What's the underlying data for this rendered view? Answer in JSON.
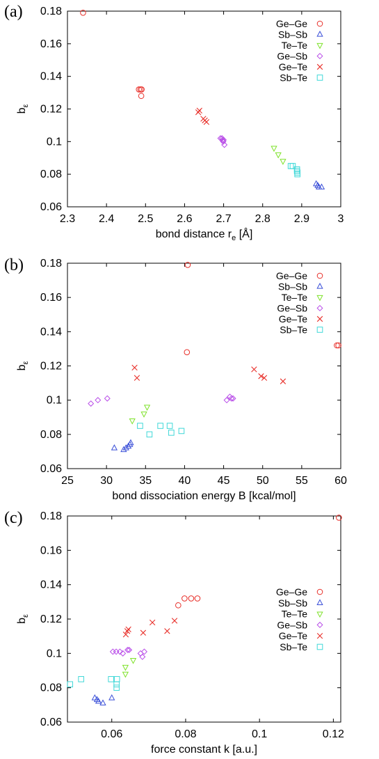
{
  "series_styles": [
    {
      "name": "Ge–Ge",
      "marker": "circle",
      "color": "#e8302a"
    },
    {
      "name": "Sb–Sb",
      "marker": "triangle-up",
      "color": "#3a4fd8"
    },
    {
      "name": "Te–Te",
      "marker": "triangle-down",
      "color": "#7ee22a"
    },
    {
      "name": "Ge–Sb",
      "marker": "diamond",
      "color": "#b84ce8"
    },
    {
      "name": "Ge–Te",
      "marker": "cross",
      "color": "#e8302a"
    },
    {
      "name": "Sb–Te",
      "marker": "square",
      "color": "#3fd8d8"
    }
  ],
  "chart_data": [
    {
      "panel_label": "(a)",
      "type": "scatter",
      "xlabel": "bond distance r",
      "xlabel_sub": "e",
      "xlabel_unit": " [Å]",
      "ylabel": "b",
      "ylabel_sub": "ε",
      "xlim": [
        2.3,
        3.0
      ],
      "ylim": [
        0.06,
        0.18
      ],
      "xticks": [
        "2.3",
        "2.4",
        "2.5",
        "2.6",
        "2.7",
        "2.8",
        "2.9",
        "3"
      ],
      "yticks": [
        "0.06",
        "0.08",
        "0.1",
        "0.12",
        "0.14",
        "0.16",
        "0.18"
      ],
      "legend_position": "top-right",
      "series": [
        {
          "name": "Ge–Ge",
          "points": [
            [
              2.34,
              0.179
            ],
            [
              2.483,
              0.132
            ],
            [
              2.487,
              0.132
            ],
            [
              2.49,
              0.132
            ],
            [
              2.489,
              0.128
            ]
          ]
        },
        {
          "name": "Sb–Sb",
          "points": [
            [
              2.937,
              0.074
            ],
            [
              2.941,
              0.073
            ],
            [
              2.944,
              0.072
            ],
            [
              2.951,
              0.072
            ]
          ]
        },
        {
          "name": "Te–Te",
          "points": [
            [
              2.829,
              0.096
            ],
            [
              2.84,
              0.092
            ],
            [
              2.852,
              0.088
            ]
          ]
        },
        {
          "name": "Ge–Sb",
          "points": [
            [
              2.692,
              0.102
            ],
            [
              2.697,
              0.101
            ],
            [
              2.7,
              0.101
            ],
            [
              2.702,
              0.098
            ],
            [
              2.699,
              0.1
            ],
            [
              2.696,
              0.102
            ]
          ]
        },
        {
          "name": "Ge–Te",
          "points": [
            [
              2.635,
              0.118
            ],
            [
              2.638,
              0.119
            ],
            [
              2.648,
              0.114
            ],
            [
              2.652,
              0.113
            ],
            [
              2.656,
              0.112
            ]
          ]
        },
        {
          "name": "Sb–Te",
          "points": [
            [
              2.872,
              0.085
            ],
            [
              2.877,
              0.085
            ],
            [
              2.888,
              0.083
            ],
            [
              2.888,
              0.082
            ],
            [
              2.889,
              0.081
            ],
            [
              2.889,
              0.08
            ]
          ]
        }
      ]
    },
    {
      "panel_label": "(b)",
      "type": "scatter",
      "xlabel": "bond dissociation energy B [kcal/mol]",
      "xlabel_sub": "",
      "xlabel_unit": "",
      "ylabel": "b",
      "ylabel_sub": "ε",
      "xlim": [
        25,
        60
      ],
      "ylim": [
        0.06,
        0.18
      ],
      "xticks": [
        "25",
        "30",
        "35",
        "40",
        "45",
        "50",
        "55",
        "60"
      ],
      "yticks": [
        "0.06",
        "0.08",
        "0.1",
        "0.12",
        "0.14",
        "0.16",
        "0.18"
      ],
      "legend_position": "top-right",
      "series": [
        {
          "name": "Ge–Ge",
          "points": [
            [
              40.4,
              0.179
            ],
            [
              40.3,
              0.128
            ],
            [
              59.5,
              0.132
            ],
            [
              59.7,
              0.132
            ]
          ]
        },
        {
          "name": "Sb–Sb",
          "points": [
            [
              31,
              0.072
            ],
            [
              32.2,
              0.071
            ],
            [
              32.5,
              0.072
            ],
            [
              32.8,
              0.073
            ],
            [
              33,
              0.074
            ],
            [
              33.1,
              0.075
            ]
          ]
        },
        {
          "name": "Te–Te",
          "points": [
            [
              33.3,
              0.088
            ],
            [
              34.8,
              0.092
            ],
            [
              35.2,
              0.096
            ]
          ]
        },
        {
          "name": "Ge–Sb",
          "points": [
            [
              28,
              0.098
            ],
            [
              28.9,
              0.1
            ],
            [
              30.1,
              0.101
            ],
            [
              45.4,
              0.1
            ],
            [
              45.8,
              0.102
            ],
            [
              46,
              0.101
            ],
            [
              46.2,
              0.101
            ]
          ]
        },
        {
          "name": "Ge–Te",
          "points": [
            [
              33.6,
              0.119
            ],
            [
              33.9,
              0.113
            ],
            [
              48.9,
              0.118
            ],
            [
              49.8,
              0.114
            ],
            [
              50.2,
              0.113
            ],
            [
              52.6,
              0.111
            ]
          ]
        },
        {
          "name": "Sb–Te",
          "points": [
            [
              34.3,
              0.085
            ],
            [
              35.5,
              0.08
            ],
            [
              36.9,
              0.085
            ],
            [
              38.1,
              0.085
            ],
            [
              38.3,
              0.081
            ],
            [
              39.6,
              0.082
            ]
          ]
        }
      ]
    },
    {
      "panel_label": "(c)",
      "type": "scatter",
      "xlabel": "force constant k [a.u.]",
      "xlabel_sub": "",
      "xlabel_unit": "",
      "ylabel": "b",
      "ylabel_sub": "ε",
      "xlim": [
        0.048,
        0.122
      ],
      "ylim": [
        0.06,
        0.18
      ],
      "xticks": [
        "0.06",
        "0.08",
        "0.1",
        "0.12"
      ],
      "xtick_values": [
        0.06,
        0.08,
        0.1,
        0.12
      ],
      "yticks": [
        "0.06",
        "0.08",
        "0.1",
        "0.12",
        "0.14",
        "0.16",
        "0.18"
      ],
      "legend_position": "center-right",
      "series": [
        {
          "name": "Ge–Ge",
          "points": [
            [
              0.1215,
              0.179
            ],
            [
              0.078,
              0.128
            ],
            [
              0.0797,
              0.132
            ],
            [
              0.0815,
              0.132
            ],
            [
              0.0832,
              0.132
            ]
          ]
        },
        {
          "name": "Sb–Sb",
          "points": [
            [
              0.0554,
              0.074
            ],
            [
              0.056,
              0.073
            ],
            [
              0.0564,
              0.072
            ],
            [
              0.0576,
              0.071
            ],
            [
              0.06,
              0.074
            ]
          ]
        },
        {
          "name": "Te–Te",
          "points": [
            [
              0.0637,
              0.088
            ],
            [
              0.0637,
              0.092
            ],
            [
              0.0658,
              0.096
            ]
          ]
        },
        {
          "name": "Ge–Sb",
          "points": [
            [
              0.0603,
              0.101
            ],
            [
              0.0612,
              0.101
            ],
            [
              0.0622,
              0.101
            ],
            [
              0.063,
              0.1
            ],
            [
              0.0643,
              0.102
            ],
            [
              0.0647,
              0.102
            ],
            [
              0.0678,
              0.1
            ],
            [
              0.0683,
              0.098
            ],
            [
              0.0688,
              0.101
            ]
          ]
        },
        {
          "name": "Ge–Te",
          "points": [
            [
              0.0638,
              0.111
            ],
            [
              0.0642,
              0.113
            ],
            [
              0.0645,
              0.114
            ],
            [
              0.0685,
              0.112
            ],
            [
              0.071,
              0.118
            ],
            [
              0.075,
              0.113
            ],
            [
              0.077,
              0.119
            ]
          ]
        },
        {
          "name": "Sb–Te",
          "points": [
            [
              0.0487,
              0.082
            ],
            [
              0.0517,
              0.085
            ],
            [
              0.0598,
              0.085
            ],
            [
              0.0614,
              0.085
            ],
            [
              0.0613,
              0.082
            ],
            [
              0.0613,
              0.08
            ]
          ]
        }
      ]
    }
  ]
}
